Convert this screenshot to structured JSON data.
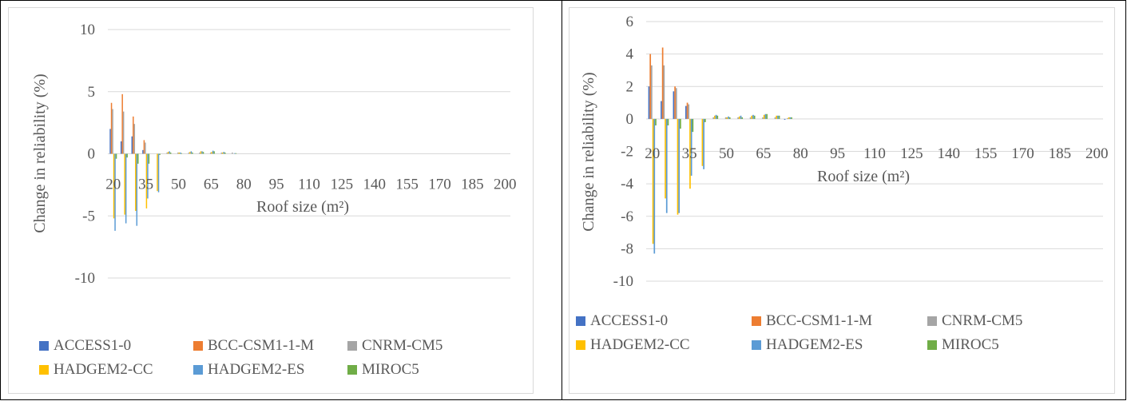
{
  "chart_data": [
    {
      "type": "bar",
      "xlabel": "Roof size (m²)",
      "ylabel": "Change in reliability (%)",
      "ylim": [
        -10,
        10
      ],
      "yticks": [
        10,
        5,
        0,
        -5,
        -10
      ],
      "x_tick_labels": [
        "20",
        "35",
        "50",
        "65",
        "80",
        "95",
        "110",
        "125",
        "140",
        "155",
        "170",
        "185",
        "200"
      ],
      "categories": [
        20,
        25,
        30,
        35,
        40,
        45,
        50,
        55,
        60,
        65,
        70,
        75,
        80,
        85,
        90,
        95,
        100,
        105,
        110,
        115,
        120,
        125,
        130,
        135,
        140,
        145,
        150,
        155,
        160,
        165,
        170,
        175,
        180,
        185,
        190,
        195,
        200
      ],
      "legend_position": "bottom",
      "gridlines": true,
      "series": [
        {
          "name": "ACCESS1-0",
          "color": "#4472c4",
          "values": [
            2.0,
            1.0,
            1.4,
            0.3,
            0,
            0,
            0,
            0,
            0,
            0,
            0,
            0,
            0,
            0,
            0,
            0,
            0,
            0,
            0,
            0,
            0,
            0,
            0,
            0,
            0,
            0,
            0,
            0,
            0,
            0,
            0,
            0,
            0,
            0,
            0,
            0,
            0
          ]
        },
        {
          "name": "BCC-CSM1-1-M",
          "color": "#ed7d31",
          "values": [
            4.1,
            4.8,
            3.0,
            1.1,
            0,
            0,
            0,
            0,
            0,
            0,
            0,
            0,
            0,
            0,
            0,
            0,
            0,
            0,
            0,
            0,
            0,
            0,
            0,
            0,
            0,
            0,
            0,
            0,
            0,
            0,
            0,
            0,
            0,
            0,
            0,
            0,
            0
          ]
        },
        {
          "name": "CNRM-CM5",
          "color": "#a5a5a5",
          "values": [
            3.6,
            3.4,
            2.4,
            0.9,
            0,
            0.1,
            0.1,
            0.1,
            0.1,
            0.1,
            0.1,
            0.1,
            0,
            0,
            0,
            0,
            0,
            0,
            0,
            0,
            0,
            0,
            0,
            0,
            0,
            0,
            0,
            0,
            0,
            0,
            0,
            0,
            0,
            0,
            0,
            0,
            0
          ]
        },
        {
          "name": "HADGEM2-CC",
          "color": "#ffc000",
          "values": [
            -5.2,
            -4.9,
            -4.6,
            -4.4,
            -3.0,
            0.15,
            0.1,
            0.15,
            0.2,
            0.15,
            0.1,
            0,
            0,
            0,
            0,
            0,
            0,
            0,
            0,
            0,
            0,
            0,
            0,
            0,
            0,
            0,
            0,
            0,
            0,
            0,
            0,
            0,
            0,
            0,
            0,
            0,
            0
          ]
        },
        {
          "name": "HADGEM2-ES",
          "color": "#5b9bd5",
          "values": [
            -6.2,
            -5.6,
            -5.8,
            -3.6,
            -3.1,
            0.2,
            0.1,
            0.2,
            0.2,
            0.25,
            0.15,
            0.05,
            0,
            0,
            0,
            0,
            0,
            0,
            0,
            0,
            0,
            0,
            0,
            0,
            0,
            0,
            0,
            0,
            0,
            0,
            0,
            0,
            0,
            0,
            0,
            0,
            0
          ]
        },
        {
          "name": "MIROC5",
          "color": "#70ad47",
          "values": [
            -0.4,
            -0.3,
            -0.8,
            -0.8,
            -0.1,
            0.1,
            0.05,
            0.1,
            0.15,
            0.2,
            0.1,
            0.05,
            0,
            0,
            0,
            0,
            0,
            0,
            0,
            0,
            0,
            0,
            0,
            0,
            0,
            0,
            0,
            0,
            0,
            0,
            0,
            0,
            0,
            0,
            0,
            0,
            0
          ]
        }
      ]
    },
    {
      "type": "bar",
      "xlabel": "Roof size (m²)",
      "ylabel": "Change in reliability (%)",
      "ylim": [
        -10,
        6
      ],
      "yticks": [
        6,
        4,
        2,
        0,
        -2,
        -4,
        -6,
        -8,
        -10
      ],
      "x_tick_labels": [
        "20",
        "35",
        "50",
        "65",
        "80",
        "95",
        "110",
        "125",
        "140",
        "155",
        "170",
        "185",
        "200"
      ],
      "categories": [
        20,
        25,
        30,
        35,
        40,
        45,
        50,
        55,
        60,
        65,
        70,
        75,
        80,
        85,
        90,
        95,
        100,
        105,
        110,
        115,
        120,
        125,
        130,
        135,
        140,
        145,
        150,
        155,
        160,
        165,
        170,
        175,
        180,
        185,
        190,
        195,
        200
      ],
      "legend_position": "bottom",
      "gridlines": true,
      "series": [
        {
          "name": "ACCESS1-0",
          "color": "#4472c4",
          "values": [
            2.0,
            1.1,
            1.7,
            0.8,
            0,
            0,
            0,
            0,
            0,
            0,
            0,
            -0.05,
            0,
            0,
            0,
            0,
            0,
            0,
            0,
            0,
            0,
            0,
            0,
            0,
            0,
            0,
            0,
            0,
            0,
            0,
            0,
            0,
            0,
            0,
            0,
            0,
            0
          ]
        },
        {
          "name": "BCC-CSM1-1-M",
          "color": "#ed7d31",
          "values": [
            4.0,
            4.4,
            2.0,
            1.0,
            0,
            0,
            0,
            0,
            0,
            0,
            0,
            0,
            0,
            0,
            0,
            0,
            0,
            0,
            0,
            0,
            0,
            0,
            0,
            0,
            0,
            0,
            0,
            0,
            0,
            0,
            0,
            0,
            0,
            0,
            0,
            0,
            0
          ]
        },
        {
          "name": "CNRM-CM5",
          "color": "#a5a5a5",
          "values": [
            3.3,
            3.3,
            1.9,
            0.9,
            0,
            0.1,
            0.1,
            0.1,
            0.1,
            0.1,
            0.1,
            0.05,
            0,
            0,
            0,
            0,
            0,
            0,
            0,
            0,
            0,
            0,
            0,
            0,
            0,
            0,
            0,
            0,
            0,
            0,
            0,
            0,
            0,
            0,
            0,
            0,
            0
          ]
        },
        {
          "name": "HADGEM2-CC",
          "color": "#ffc000",
          "values": [
            -7.7,
            -4.9,
            -5.9,
            -4.3,
            -2.9,
            0.2,
            0.1,
            0.15,
            0.2,
            0.25,
            0.2,
            0.1,
            0,
            0,
            0,
            0,
            0,
            0,
            0,
            0,
            0,
            0,
            0,
            0,
            0,
            0,
            0,
            0,
            0,
            0,
            0,
            0,
            0,
            0,
            0,
            0,
            0
          ]
        },
        {
          "name": "HADGEM2-ES",
          "color": "#5b9bd5",
          "values": [
            -8.3,
            -5.8,
            -5.8,
            -3.5,
            -3.1,
            0.25,
            0.15,
            0.2,
            0.25,
            0.3,
            0.2,
            0.1,
            0,
            0,
            0,
            0,
            0,
            0,
            0,
            0,
            0,
            0,
            0,
            0,
            0,
            0,
            0,
            0,
            0,
            0,
            0,
            0,
            0,
            0,
            0,
            0,
            0
          ]
        },
        {
          "name": "MIROC5",
          "color": "#70ad47",
          "values": [
            -0.4,
            -0.4,
            -0.6,
            -0.8,
            -0.2,
            0.2,
            0.1,
            0.1,
            0.2,
            0.3,
            0.2,
            0.1,
            0,
            0,
            0,
            0,
            0,
            0,
            0,
            0,
            0,
            0,
            0,
            0,
            0,
            0,
            0,
            0,
            0,
            0,
            0,
            0,
            0,
            0,
            0,
            0,
            0
          ]
        }
      ]
    }
  ]
}
